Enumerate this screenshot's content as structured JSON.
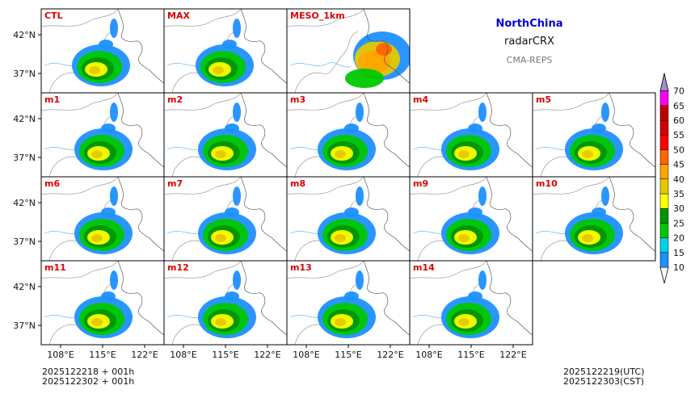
{
  "header": {
    "region": "NorthChina",
    "product": "radarCRX",
    "source": "CMA-REPS"
  },
  "footer": {
    "init_utc": "2025122218  +  001h",
    "init_cst": "2025122302  +  001h",
    "valid_utc": "2025122219(UTC)",
    "valid_cst": "2025122303(CST)"
  },
  "chart_data": {
    "type": "heatmap",
    "panels": [
      {
        "label": "CTL",
        "row": 0,
        "col": 0
      },
      {
        "label": "MAX",
        "row": 0,
        "col": 1
      },
      {
        "label": "MESO_1km",
        "row": 0,
        "col": 2
      },
      {
        "label": "m1",
        "row": 1,
        "col": 0
      },
      {
        "label": "m2",
        "row": 1,
        "col": 1
      },
      {
        "label": "m3",
        "row": 1,
        "col": 2
      },
      {
        "label": "m4",
        "row": 1,
        "col": 3
      },
      {
        "label": "m5",
        "row": 1,
        "col": 4
      },
      {
        "label": "m6",
        "row": 2,
        "col": 0
      },
      {
        "label": "m7",
        "row": 2,
        "col": 1
      },
      {
        "label": "m8",
        "row": 2,
        "col": 2
      },
      {
        "label": "m9",
        "row": 2,
        "col": 3
      },
      {
        "label": "m10",
        "row": 2,
        "col": 4
      },
      {
        "label": "m11",
        "row": 3,
        "col": 0
      },
      {
        "label": "m12",
        "row": 3,
        "col": 1
      },
      {
        "label": "m13",
        "row": 3,
        "col": 2
      },
      {
        "label": "m14",
        "row": 3,
        "col": 3
      }
    ],
    "y_ticks": [
      "42°N",
      "37°N"
    ],
    "x_ticks": [
      "108°E",
      "115°E",
      "122°E"
    ],
    "colorbar": {
      "levels": [
        10,
        15,
        20,
        25,
        30,
        35,
        40,
        45,
        50,
        55,
        60,
        65,
        70
      ],
      "colors": [
        "#1e90ff",
        "#00d2e6",
        "#00c800",
        "#009600",
        "#ffff00",
        "#e6c800",
        "#ffa500",
        "#ff6400",
        "#ff0000",
        "#d20000",
        "#c00000",
        "#ff00f0",
        "#9600b4",
        "#a08cd2"
      ]
    }
  }
}
